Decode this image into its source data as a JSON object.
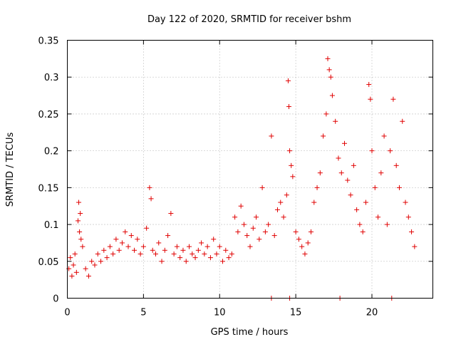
{
  "chart_data": {
    "type": "scatter",
    "title": "Day 122 of 2020, SRMTID for receiver bshm",
    "xlabel": "GPS time / hours",
    "ylabel": "SRMTID / TECUs",
    "xlim": [
      0,
      24
    ],
    "ylim": [
      0,
      0.35
    ],
    "x_ticks": [
      0,
      5,
      10,
      15,
      20
    ],
    "x_tick_labels": [
      "0",
      "5",
      "10",
      "15",
      "20"
    ],
    "y_ticks": [
      0,
      0.05,
      0.1,
      0.15,
      0.2,
      0.25,
      0.3,
      0.35
    ],
    "y_tick_labels": [
      "0",
      "0.05",
      "0.1",
      "0.15",
      "0.2",
      "0.25",
      "0.3",
      "0.35"
    ],
    "grid": true,
    "marker": "+",
    "marker_color": "#e00000",
    "series": [
      {
        "name": "SRMTID",
        "points": [
          [
            0.1,
            0.04
          ],
          [
            0.2,
            0.055
          ],
          [
            0.3,
            0.03
          ],
          [
            0.4,
            0.045
          ],
          [
            0.5,
            0.06
          ],
          [
            0.6,
            0.035
          ],
          [
            0.7,
            0.105
          ],
          [
            0.75,
            0.13
          ],
          [
            0.8,
            0.09
          ],
          [
            0.85,
            0.115
          ],
          [
            0.9,
            0.08
          ],
          [
            1.0,
            0.07
          ],
          [
            1.2,
            0.04
          ],
          [
            1.4,
            0.03
          ],
          [
            1.6,
            0.05
          ],
          [
            1.8,
            0.045
          ],
          [
            2.0,
            0.06
          ],
          [
            2.2,
            0.05
          ],
          [
            2.4,
            0.065
          ],
          [
            2.6,
            0.055
          ],
          [
            2.8,
            0.07
          ],
          [
            3.0,
            0.06
          ],
          [
            3.2,
            0.08
          ],
          [
            3.4,
            0.065
          ],
          [
            3.6,
            0.075
          ],
          [
            3.8,
            0.09
          ],
          [
            4.0,
            0.07
          ],
          [
            4.2,
            0.085
          ],
          [
            4.4,
            0.065
          ],
          [
            4.6,
            0.08
          ],
          [
            4.8,
            0.06
          ],
          [
            5.0,
            0.07
          ],
          [
            5.2,
            0.095
          ],
          [
            5.4,
            0.15
          ],
          [
            5.5,
            0.135
          ],
          [
            5.6,
            0.065
          ],
          [
            5.8,
            0.06
          ],
          [
            6.0,
            0.075
          ],
          [
            6.2,
            0.05
          ],
          [
            6.4,
            0.065
          ],
          [
            6.6,
            0.085
          ],
          [
            6.8,
            0.115
          ],
          [
            7.0,
            0.06
          ],
          [
            7.2,
            0.07
          ],
          [
            7.4,
            0.055
          ],
          [
            7.6,
            0.065
          ],
          [
            7.8,
            0.05
          ],
          [
            8.0,
            0.07
          ],
          [
            8.2,
            0.06
          ],
          [
            8.4,
            0.055
          ],
          [
            8.6,
            0.065
          ],
          [
            8.8,
            0.075
          ],
          [
            9.0,
            0.06
          ],
          [
            9.2,
            0.07
          ],
          [
            9.4,
            0.055
          ],
          [
            9.6,
            0.08
          ],
          [
            9.8,
            0.06
          ],
          [
            10.0,
            0.07
          ],
          [
            10.2,
            0.05
          ],
          [
            10.4,
            0.065
          ],
          [
            10.6,
            0.055
          ],
          [
            10.8,
            0.06
          ],
          [
            11.0,
            0.11
          ],
          [
            11.2,
            0.09
          ],
          [
            11.4,
            0.125
          ],
          [
            11.6,
            0.1
          ],
          [
            11.8,
            0.085
          ],
          [
            12.0,
            0.07
          ],
          [
            12.2,
            0.095
          ],
          [
            12.4,
            0.11
          ],
          [
            12.6,
            0.08
          ],
          [
            12.8,
            0.15
          ],
          [
            13.0,
            0.09
          ],
          [
            13.2,
            0.1
          ],
          [
            13.4,
            0.22
          ],
          [
            13.6,
            0.085
          ],
          [
            13.8,
            0.12
          ],
          [
            14.0,
            0.13
          ],
          [
            14.2,
            0.11
          ],
          [
            14.4,
            0.14
          ],
          [
            14.5,
            0.295
          ],
          [
            14.55,
            0.26
          ],
          [
            14.6,
            0.2
          ],
          [
            14.7,
            0.18
          ],
          [
            14.8,
            0.165
          ],
          [
            15.0,
            0.09
          ],
          [
            15.2,
            0.08
          ],
          [
            15.4,
            0.07
          ],
          [
            15.6,
            0.06
          ],
          [
            15.8,
            0.075
          ],
          [
            16.0,
            0.09
          ],
          [
            16.2,
            0.13
          ],
          [
            16.4,
            0.15
          ],
          [
            16.6,
            0.17
          ],
          [
            16.8,
            0.22
          ],
          [
            17.0,
            0.25
          ],
          [
            17.1,
            0.325
          ],
          [
            17.2,
            0.31
          ],
          [
            17.3,
            0.3
          ],
          [
            17.4,
            0.275
          ],
          [
            17.6,
            0.24
          ],
          [
            17.8,
            0.19
          ],
          [
            18.0,
            0.17
          ],
          [
            18.2,
            0.21
          ],
          [
            18.4,
            0.16
          ],
          [
            18.6,
            0.14
          ],
          [
            18.8,
            0.18
          ],
          [
            19.0,
            0.12
          ],
          [
            19.2,
            0.1
          ],
          [
            19.4,
            0.09
          ],
          [
            19.6,
            0.13
          ],
          [
            19.8,
            0.29
          ],
          [
            19.9,
            0.27
          ],
          [
            20.0,
            0.2
          ],
          [
            20.2,
            0.15
          ],
          [
            20.4,
            0.11
          ],
          [
            20.6,
            0.17
          ],
          [
            20.8,
            0.22
          ],
          [
            21.0,
            0.1
          ],
          [
            21.2,
            0.2
          ],
          [
            21.4,
            0.27
          ],
          [
            21.6,
            0.18
          ],
          [
            21.8,
            0.15
          ],
          [
            22.0,
            0.24
          ],
          [
            22.2,
            0.13
          ],
          [
            22.4,
            0.11
          ],
          [
            22.6,
            0.09
          ],
          [
            22.8,
            0.07
          ],
          [
            13.4,
            0
          ],
          [
            14.6,
            0
          ],
          [
            17.9,
            0
          ],
          [
            21.3,
            0
          ]
        ]
      }
    ]
  }
}
